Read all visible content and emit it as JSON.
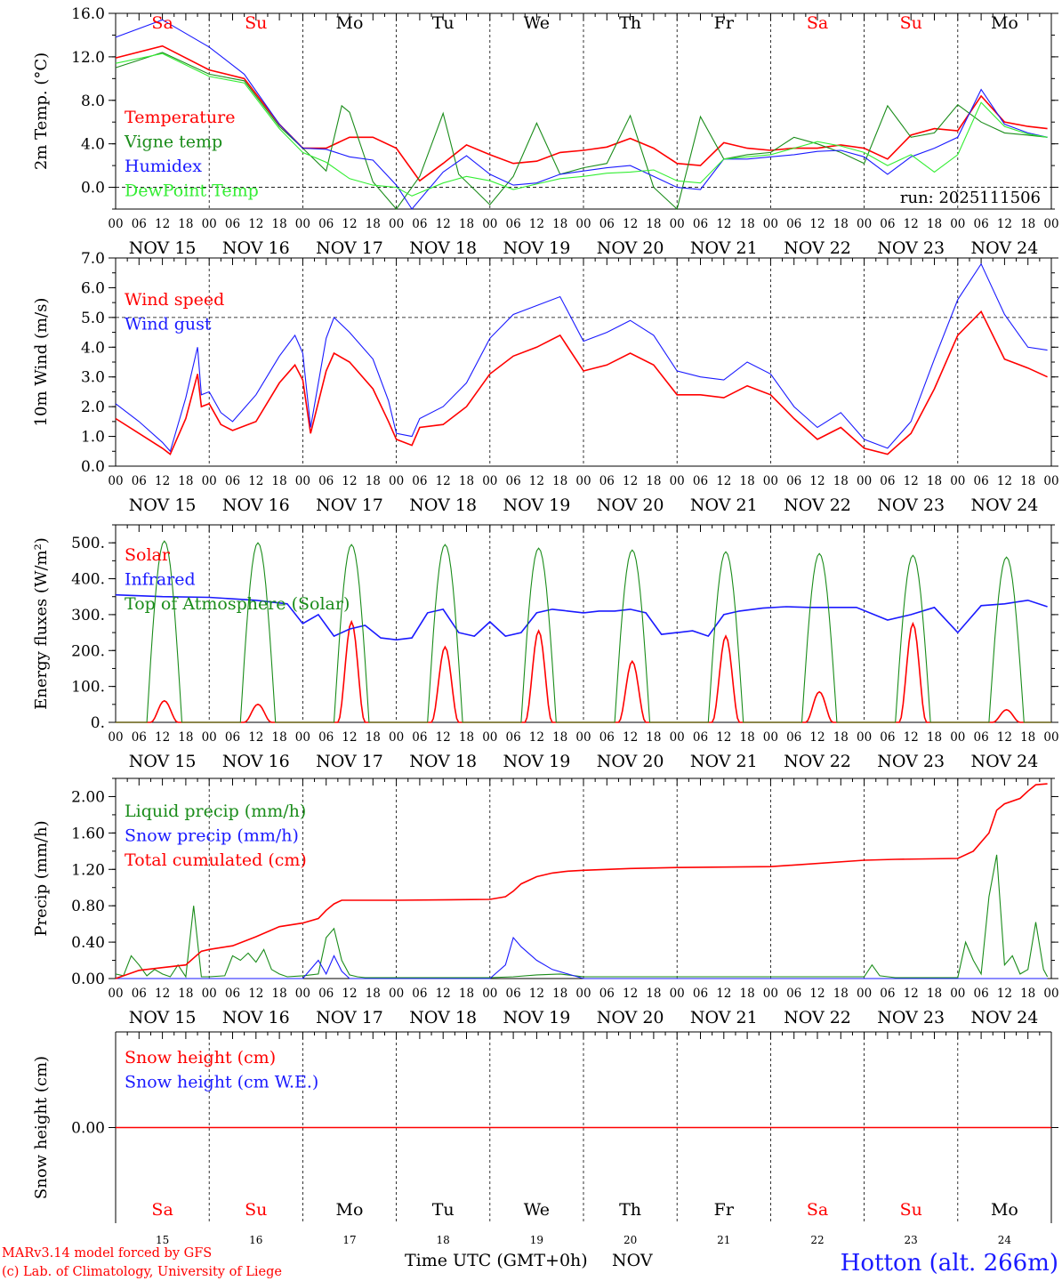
{
  "location_title": "Hotton (alt. 266m)",
  "credits": [
    "MARv3.14 model forced by GFS",
    "(c) Lab. of Climatology, University of Liege"
  ],
  "x_axis_title": "Time UTC (GMT+0h)",
  "month_label": "NOV",
  "run_label": "run: 2025111506",
  "colors": {
    "red": "#ff0000",
    "green": "#1a8c1a",
    "blue": "#1a1aff",
    "lightgreen": "#33ee33",
    "black": "#000000"
  },
  "days": [
    {
      "abbr": "Sa",
      "date": "NOV 15",
      "num": "15",
      "weekend": true
    },
    {
      "abbr": "Su",
      "date": "NOV 16",
      "num": "16",
      "weekend": true
    },
    {
      "abbr": "Mo",
      "date": "NOV 17",
      "num": "17",
      "weekend": false
    },
    {
      "abbr": "Tu",
      "date": "NOV 18",
      "num": "18",
      "weekend": false
    },
    {
      "abbr": "We",
      "date": "NOV 19",
      "num": "19",
      "weekend": false
    },
    {
      "abbr": "Th",
      "date": "NOV 20",
      "num": "20",
      "weekend": false
    },
    {
      "abbr": "Fr",
      "date": "NOV 21",
      "num": "21",
      "weekend": false
    },
    {
      "abbr": "Sa",
      "date": "NOV 22",
      "num": "22",
      "weekend": true
    },
    {
      "abbr": "Su",
      "date": "NOV 23",
      "num": "23",
      "weekend": true
    },
    {
      "abbr": "Mo",
      "date": "NOV 24",
      "num": "24",
      "weekend": false
    }
  ],
  "hour_labels": [
    "00",
    "06",
    "12",
    "18"
  ],
  "chart_data": [
    {
      "type": "line",
      "id": "temp",
      "ylabel": "2m Temp. (°C)",
      "ylim": [
        -2,
        16
      ],
      "yticks": [
        "16.0",
        "12.0",
        "8.0",
        "4.0",
        "0.0"
      ],
      "ytick_values": [
        16,
        12,
        8,
        4,
        0
      ],
      "ref_line": 0,
      "x_unit": "hours since NOV 15 00 UTC",
      "series": [
        {
          "name": "Temperature",
          "color": "red",
          "x": [
            0,
            12,
            24,
            33,
            42,
            48,
            54,
            60,
            66,
            72,
            78,
            84,
            90,
            96,
            102,
            108,
            114,
            120,
            126,
            132,
            138,
            144,
            150,
            156,
            162,
            168,
            174,
            180,
            186,
            192,
            198,
            204,
            210,
            216,
            222,
            228,
            234,
            239
          ],
          "values": [
            11.9,
            13.0,
            10.8,
            10.0,
            5.8,
            3.6,
            3.6,
            4.6,
            4.6,
            3.6,
            0.6,
            2.2,
            3.9,
            3.0,
            2.2,
            2.4,
            3.2,
            3.4,
            3.7,
            4.5,
            3.6,
            2.2,
            2.0,
            4.1,
            3.6,
            3.4,
            3.6,
            3.6,
            3.9,
            3.6,
            2.6,
            4.8,
            5.4,
            5.2,
            8.4,
            6.0,
            5.6,
            5.4
          ]
        },
        {
          "name": "Vigne temp",
          "color": "green",
          "x": [
            0,
            12,
            24,
            33,
            42,
            48,
            54,
            58,
            60,
            66,
            72,
            78,
            84,
            88,
            96,
            102,
            108,
            114,
            120,
            126,
            132,
            138,
            144,
            150,
            156,
            162,
            168,
            174,
            180,
            186,
            192,
            198,
            204,
            210,
            216,
            222,
            228,
            234,
            239
          ],
          "values": [
            11.0,
            12.4,
            10.4,
            9.8,
            5.6,
            3.6,
            1.5,
            7.5,
            6.9,
            0.5,
            -2.0,
            1.0,
            6.8,
            1.2,
            -1.6,
            1.0,
            5.9,
            1.2,
            1.8,
            2.2,
            6.6,
            0.0,
            -2.0,
            6.5,
            2.6,
            3.0,
            3.2,
            4.6,
            4.0,
            3.2,
            2.2,
            7.5,
            4.6,
            5.0,
            7.6,
            6.0,
            5.0,
            4.8,
            4.6
          ]
        },
        {
          "name": "Humidex",
          "color": "blue",
          "x": [
            0,
            12,
            24,
            33,
            42,
            48,
            54,
            60,
            66,
            72,
            76,
            84,
            90,
            96,
            102,
            108,
            114,
            120,
            126,
            132,
            138,
            144,
            150,
            156,
            162,
            168,
            174,
            180,
            186,
            192,
            198,
            204,
            210,
            216,
            222,
            228,
            234,
            239
          ],
          "values": [
            13.8,
            15.4,
            12.9,
            10.4,
            5.8,
            3.6,
            3.5,
            2.8,
            2.5,
            0.2,
            -2.0,
            1.4,
            2.9,
            1.2,
            0.2,
            0.4,
            1.2,
            1.5,
            1.8,
            2.0,
            1.0,
            0.0,
            -0.2,
            2.6,
            2.6,
            2.8,
            3.0,
            3.3,
            3.4,
            2.8,
            1.2,
            2.8,
            3.6,
            4.6,
            9.0,
            5.8,
            5.0,
            4.6
          ]
        },
        {
          "name": "DewPoint Temp",
          "color": "lightgreen",
          "x": [
            0,
            12,
            24,
            33,
            42,
            48,
            54,
            60,
            66,
            72,
            76,
            84,
            90,
            96,
            102,
            108,
            114,
            120,
            126,
            132,
            138,
            144,
            150,
            156,
            162,
            168,
            174,
            180,
            186,
            192,
            198,
            204,
            210,
            216,
            222,
            228,
            234,
            239
          ],
          "values": [
            11.4,
            12.3,
            10.2,
            9.6,
            5.4,
            3.2,
            2.3,
            0.8,
            0.2,
            0.0,
            -0.8,
            0.4,
            1.0,
            0.6,
            -0.2,
            0.3,
            0.8,
            1.0,
            1.3,
            1.4,
            1.6,
            0.6,
            0.4,
            2.6,
            2.8,
            3.0,
            3.6,
            4.2,
            3.8,
            3.2,
            2.0,
            3.0,
            1.4,
            3.0,
            7.8,
            5.6,
            4.9,
            4.6
          ]
        }
      ]
    },
    {
      "type": "line",
      "id": "wind",
      "ylabel": "10m Wind (m/s)",
      "ylim": [
        0,
        7
      ],
      "yticks": [
        "7.0",
        "6.0",
        "5.0",
        "4.0",
        "3.0",
        "2.0",
        "1.0",
        "0.0"
      ],
      "ytick_values": [
        7,
        6,
        5,
        4,
        3,
        2,
        1,
        0
      ],
      "ref_line": 5,
      "x_unit": "hours since NOV 15 00 UTC",
      "series": [
        {
          "name": "Wind speed",
          "color": "red",
          "x": [
            0,
            6,
            12,
            14,
            18,
            21,
            22,
            24,
            27,
            30,
            36,
            42,
            46,
            48,
            50,
            54,
            56,
            60,
            66,
            70,
            72,
            76,
            78,
            84,
            90,
            96,
            102,
            108,
            114,
            120,
            126,
            132,
            138,
            144,
            150,
            156,
            162,
            168,
            174,
            180,
            186,
            192,
            198,
            204,
            210,
            216,
            222,
            228,
            234,
            239
          ],
          "values": [
            1.6,
            1.1,
            0.6,
            0.4,
            1.6,
            3.1,
            2.0,
            2.1,
            1.4,
            1.2,
            1.5,
            2.8,
            3.4,
            2.9,
            1.1,
            3.2,
            3.8,
            3.5,
            2.6,
            1.5,
            0.9,
            0.7,
            1.3,
            1.4,
            2.0,
            3.1,
            3.7,
            4.0,
            4.4,
            3.2,
            3.4,
            3.8,
            3.4,
            2.4,
            2.4,
            2.3,
            2.7,
            2.4,
            1.6,
            0.9,
            1.3,
            0.6,
            0.4,
            1.1,
            2.6,
            4.4,
            5.2,
            3.6,
            3.3,
            3.0
          ]
        },
        {
          "name": "Wind gust",
          "color": "blue",
          "x": [
            0,
            6,
            12,
            14,
            18,
            21,
            22,
            24,
            27,
            30,
            36,
            42,
            46,
            48,
            50,
            54,
            56,
            60,
            66,
            70,
            72,
            76,
            78,
            84,
            90,
            96,
            102,
            108,
            114,
            120,
            126,
            132,
            138,
            144,
            150,
            156,
            162,
            168,
            174,
            180,
            186,
            192,
            198,
            204,
            210,
            216,
            222,
            228,
            234,
            239
          ],
          "values": [
            2.1,
            1.5,
            0.8,
            0.5,
            2.3,
            4.0,
            2.4,
            2.5,
            1.8,
            1.5,
            2.4,
            3.7,
            4.4,
            3.8,
            1.3,
            4.3,
            5.0,
            4.5,
            3.6,
            2.2,
            1.1,
            1.0,
            1.6,
            2.0,
            2.8,
            4.3,
            5.1,
            5.4,
            5.7,
            4.2,
            4.5,
            4.9,
            4.4,
            3.2,
            3.0,
            2.9,
            3.5,
            3.1,
            2.0,
            1.3,
            1.8,
            0.9,
            0.6,
            1.5,
            3.6,
            5.6,
            6.8,
            5.1,
            4.0,
            3.9
          ]
        }
      ]
    },
    {
      "type": "line",
      "id": "flux",
      "ylabel": "Energy fluxes (W/m²)",
      "ylim": [
        0,
        550
      ],
      "yticks": [
        "500.",
        "400.",
        "300.",
        "200.",
        "100.",
        "0."
      ],
      "ytick_values": [
        500,
        400,
        300,
        200,
        100,
        0
      ],
      "x_unit": "hours since NOV 15 00 UTC",
      "series": [
        {
          "name": "Solar",
          "color": "red",
          "peaks": [
            60,
            50,
            280,
            210,
            255,
            170,
            240,
            85,
            275,
            35
          ]
        },
        {
          "name": "Infrared",
          "color": "blue",
          "x": [
            0,
            12,
            24,
            36,
            44,
            48,
            52,
            56,
            60,
            64,
            68,
            72,
            76,
            80,
            84,
            88,
            92,
            96,
            100,
            104,
            108,
            112,
            116,
            120,
            124,
            128,
            132,
            136,
            140,
            144,
            148,
            152,
            156,
            160,
            166,
            172,
            178,
            184,
            190,
            198,
            204,
            210,
            216,
            222,
            228,
            234,
            239
          ],
          "values": [
            355,
            350,
            348,
            340,
            330,
            275,
            300,
            240,
            260,
            270,
            235,
            230,
            235,
            305,
            315,
            250,
            240,
            280,
            240,
            250,
            305,
            315,
            310,
            305,
            310,
            310,
            315,
            305,
            245,
            250,
            255,
            240,
            300,
            310,
            318,
            322,
            320,
            320,
            320,
            285,
            300,
            320,
            250,
            325,
            330,
            340,
            322
          ]
        },
        {
          "name": "Top of Atmosphere (Solar)",
          "color": "green",
          "peaks": [
            505,
            500,
            495,
            495,
            485,
            480,
            475,
            470,
            465,
            460
          ]
        }
      ]
    },
    {
      "type": "line",
      "id": "precip",
      "ylabel": "Precip (mm/h)",
      "ylim": [
        0,
        2.2
      ],
      "yticks": [
        "2.00",
        "1.60",
        "1.20",
        "0.80",
        "0.40",
        "0.00"
      ],
      "ytick_values": [
        2.0,
        1.6,
        1.2,
        0.8,
        0.4,
        0.0
      ],
      "x_unit": "hours since NOV 15 00 UTC",
      "series": [
        {
          "name": "Liquid precip (mm/h)",
          "color": "green",
          "x": [
            0,
            2,
            4,
            6,
            8,
            10,
            12,
            14,
            16,
            18,
            20,
            22,
            24,
            28,
            30,
            32,
            34,
            36,
            38,
            40,
            42,
            44,
            48,
            52,
            54,
            56,
            58,
            60,
            62,
            64,
            68,
            72,
            96,
            102,
            108,
            114,
            120,
            192,
            194,
            196,
            200,
            216,
            218,
            220,
            222,
            224,
            226,
            228,
            230,
            232,
            234,
            236,
            238,
            239
          ],
          "values": [
            0.05,
            0.03,
            0.25,
            0.15,
            0.03,
            0.1,
            0.05,
            0.02,
            0.15,
            0.02,
            0.8,
            0.02,
            0.02,
            0.03,
            0.25,
            0.2,
            0.28,
            0.18,
            0.32,
            0.1,
            0.05,
            0.02,
            0.03,
            0.05,
            0.45,
            0.55,
            0.2,
            0.04,
            0.02,
            0.01,
            0.01,
            0.01,
            0.01,
            0.02,
            0.04,
            0.05,
            0.02,
            0.02,
            0.15,
            0.03,
            0.01,
            0.01,
            0.4,
            0.2,
            0.05,
            0.9,
            1.36,
            0.15,
            0.25,
            0.05,
            0.1,
            0.62,
            0.1,
            0.02
          ]
        },
        {
          "name": "Snow precip (mm/h)",
          "color": "blue",
          "x": [
            0,
            48,
            52,
            54,
            56,
            58,
            60,
            62,
            96,
            100,
            102,
            104,
            108,
            112,
            116,
            120,
            239
          ],
          "values": [
            0.0,
            0.0,
            0.2,
            0.05,
            0.25,
            0.08,
            0.0,
            0.0,
            0.0,
            0.15,
            0.45,
            0.35,
            0.2,
            0.1,
            0.05,
            0.0,
            0.0
          ]
        },
        {
          "name": "Total cumulated (cm)",
          "color": "red",
          "x": [
            0,
            6,
            12,
            18,
            22,
            24,
            30,
            36,
            42,
            48,
            52,
            54,
            56,
            58,
            60,
            72,
            96,
            100,
            102,
            104,
            108,
            112,
            116,
            120,
            132,
            144,
            168,
            192,
            200,
            216,
            220,
            224,
            226,
            228,
            232,
            234,
            236,
            239
          ],
          "values": [
            0.0,
            0.09,
            0.12,
            0.15,
            0.3,
            0.32,
            0.36,
            0.46,
            0.57,
            0.61,
            0.66,
            0.75,
            0.82,
            0.86,
            0.86,
            0.86,
            0.87,
            0.9,
            0.96,
            1.04,
            1.12,
            1.16,
            1.18,
            1.19,
            1.21,
            1.22,
            1.23,
            1.3,
            1.31,
            1.32,
            1.4,
            1.6,
            1.85,
            1.92,
            1.98,
            2.06,
            2.13,
            2.14
          ]
        }
      ]
    },
    {
      "type": "line",
      "id": "snow",
      "ylabel": "Snow height (cm)",
      "ylim": [
        -1,
        1
      ],
      "yticks": [
        "0.00"
      ],
      "ytick_values": [
        0
      ],
      "x_unit": "hours since NOV 15 00 UTC",
      "series": [
        {
          "name": "Snow height (cm)",
          "color": "red",
          "x": [
            0,
            240
          ],
          "values": [
            0,
            0
          ]
        },
        {
          "name": "Snow height (cm W.E.)",
          "color": "blue",
          "x": [],
          "values": []
        }
      ]
    }
  ]
}
